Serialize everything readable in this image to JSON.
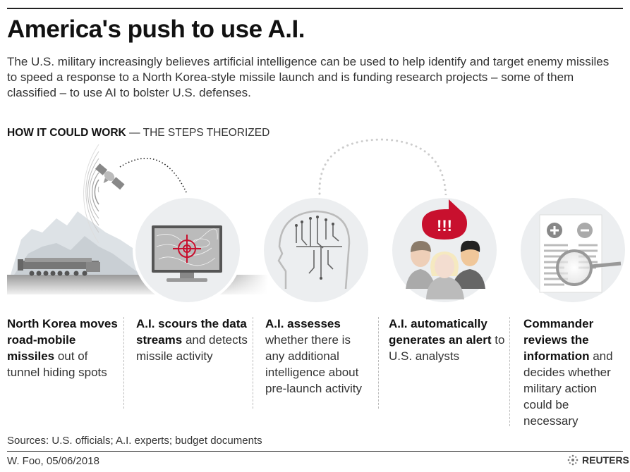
{
  "title": "America's push to use A.I.",
  "intro": "The U.S. military increasingly believes artificial intelligence can be used to help identify and target enemy missiles to speed a response to a North Korea-style missile launch and is funding research projects – some of them classified – to use AI to bolster U.S. defenses.",
  "subhead": {
    "bold": "HOW IT COULD WORK",
    "normal": " — THE STEPS THEORIZED"
  },
  "alert_text": "!!!",
  "steps": [
    {
      "bold": "North Korea moves road-mobile missiles",
      "normal": " out of tunnel hiding spots",
      "bold2": "",
      "normal2": ""
    },
    {
      "bold": "A.I. scours the data streams",
      "normal": " and detects missile activity",
      "bold2": "",
      "normal2": ""
    },
    {
      "bold": "A.I. assesses",
      "normal": " whether there is any additional intelligence about pre-launch activity",
      "bold2": "",
      "normal2": ""
    },
    {
      "bold": "A.I. automatically generates an alert",
      "normal": " to U.S. analysts",
      "bold2": "",
      "normal2": ""
    },
    {
      "bold": "Commander reviews the information",
      "normal": " and decides whether military action could be necessary",
      "bold2": "",
      "normal2": ""
    }
  ],
  "sources": "Sources: U.S. officials; A.I. experts; budget documents",
  "credit": "W. Foo, 05/06/2018",
  "logo": "REUTERS",
  "colors": {
    "accent": "#c8102e",
    "circle": "#eceef0",
    "text": "#222222"
  }
}
